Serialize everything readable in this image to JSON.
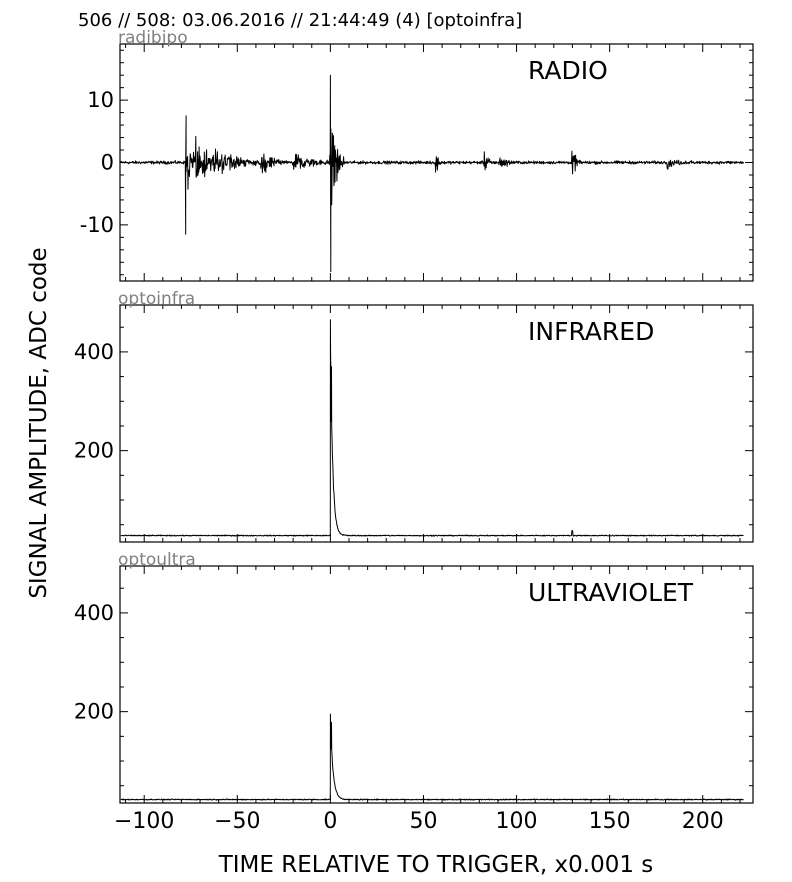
{
  "header": {
    "title": "506 // 508:   03.06.2016 // 21:44:49 (4)  [optoinfra]"
  },
  "chart_data": {
    "xlabel": "TIME RELATIVE TO TRIGGER,   x0.001 s",
    "ylabel": "SIGNAL AMPLITUDE,  ADC code",
    "xlim": [
      -113,
      227
    ],
    "xticks": [
      -100,
      -50,
      0,
      50,
      100,
      150,
      200
    ],
    "xtick_labels": [
      "−100",
      "−50",
      "0",
      "50",
      "100",
      "150",
      "200"
    ],
    "grid": false,
    "panels": [
      {
        "type": "line",
        "source": "radibipo",
        "label": "RADIO",
        "ylim": [
          -19,
          19
        ],
        "yticks": [
          10,
          0,
          -10
        ],
        "ytick_labels": [
          "10",
          "0",
          "-10"
        ],
        "baseline": 0,
        "noise_level": 0.35,
        "bursts": [
          {
            "x": -77,
            "amp": 8,
            "duration": 3
          },
          {
            "x": -72,
            "amp": 5,
            "duration": 10
          },
          {
            "x": -63,
            "amp": 3,
            "duration": 14
          },
          {
            "x": -37,
            "amp": 3,
            "duration": 6
          },
          {
            "x": -20,
            "amp": 2.5,
            "duration": 10
          },
          {
            "x": 0,
            "amp": 14,
            "duration": 3
          },
          {
            "x": 57,
            "amp": 2.5,
            "duration": 2
          },
          {
            "x": 83,
            "amp": 2.5,
            "duration": 2
          },
          {
            "x": 91,
            "amp": 2,
            "duration": 3
          },
          {
            "x": 130,
            "amp": 3.5,
            "duration": 2
          },
          {
            "x": 181,
            "amp": 1.2,
            "duration": 6
          }
        ],
        "peaks": [
          {
            "x": -77.5,
            "y": 7.5
          },
          {
            "x": -77.7,
            "y": -11.5
          },
          {
            "x": 0,
            "y": 14
          },
          {
            "x": 0.2,
            "y": -17.5
          }
        ]
      },
      {
        "type": "line",
        "source": "optoinfra",
        "label": "INFRARED",
        "ylim": [
          15,
          495
        ],
        "yticks": [
          400,
          200
        ],
        "ytick_labels": [
          "400",
          "200"
        ],
        "baseline": 28,
        "noise_level": 1.5,
        "pulse": {
          "x": 0,
          "peak": 465,
          "secondary_peak": 370,
          "decay": 1.2
        },
        "minor_bumps": [
          {
            "x": 130,
            "y": 38
          }
        ]
      },
      {
        "type": "line",
        "source": "optoultra",
        "label": "ULTRAVIOLET",
        "ylim": [
          15,
          495
        ],
        "yticks": [
          400,
          200
        ],
        "ytick_labels": [
          "400",
          "200"
        ],
        "baseline": 22,
        "noise_level": 1.5,
        "pulse": {
          "x": 0,
          "peak": 195,
          "secondary_peak": 178,
          "decay": 1.4
        },
        "minor_bumps": []
      }
    ]
  }
}
